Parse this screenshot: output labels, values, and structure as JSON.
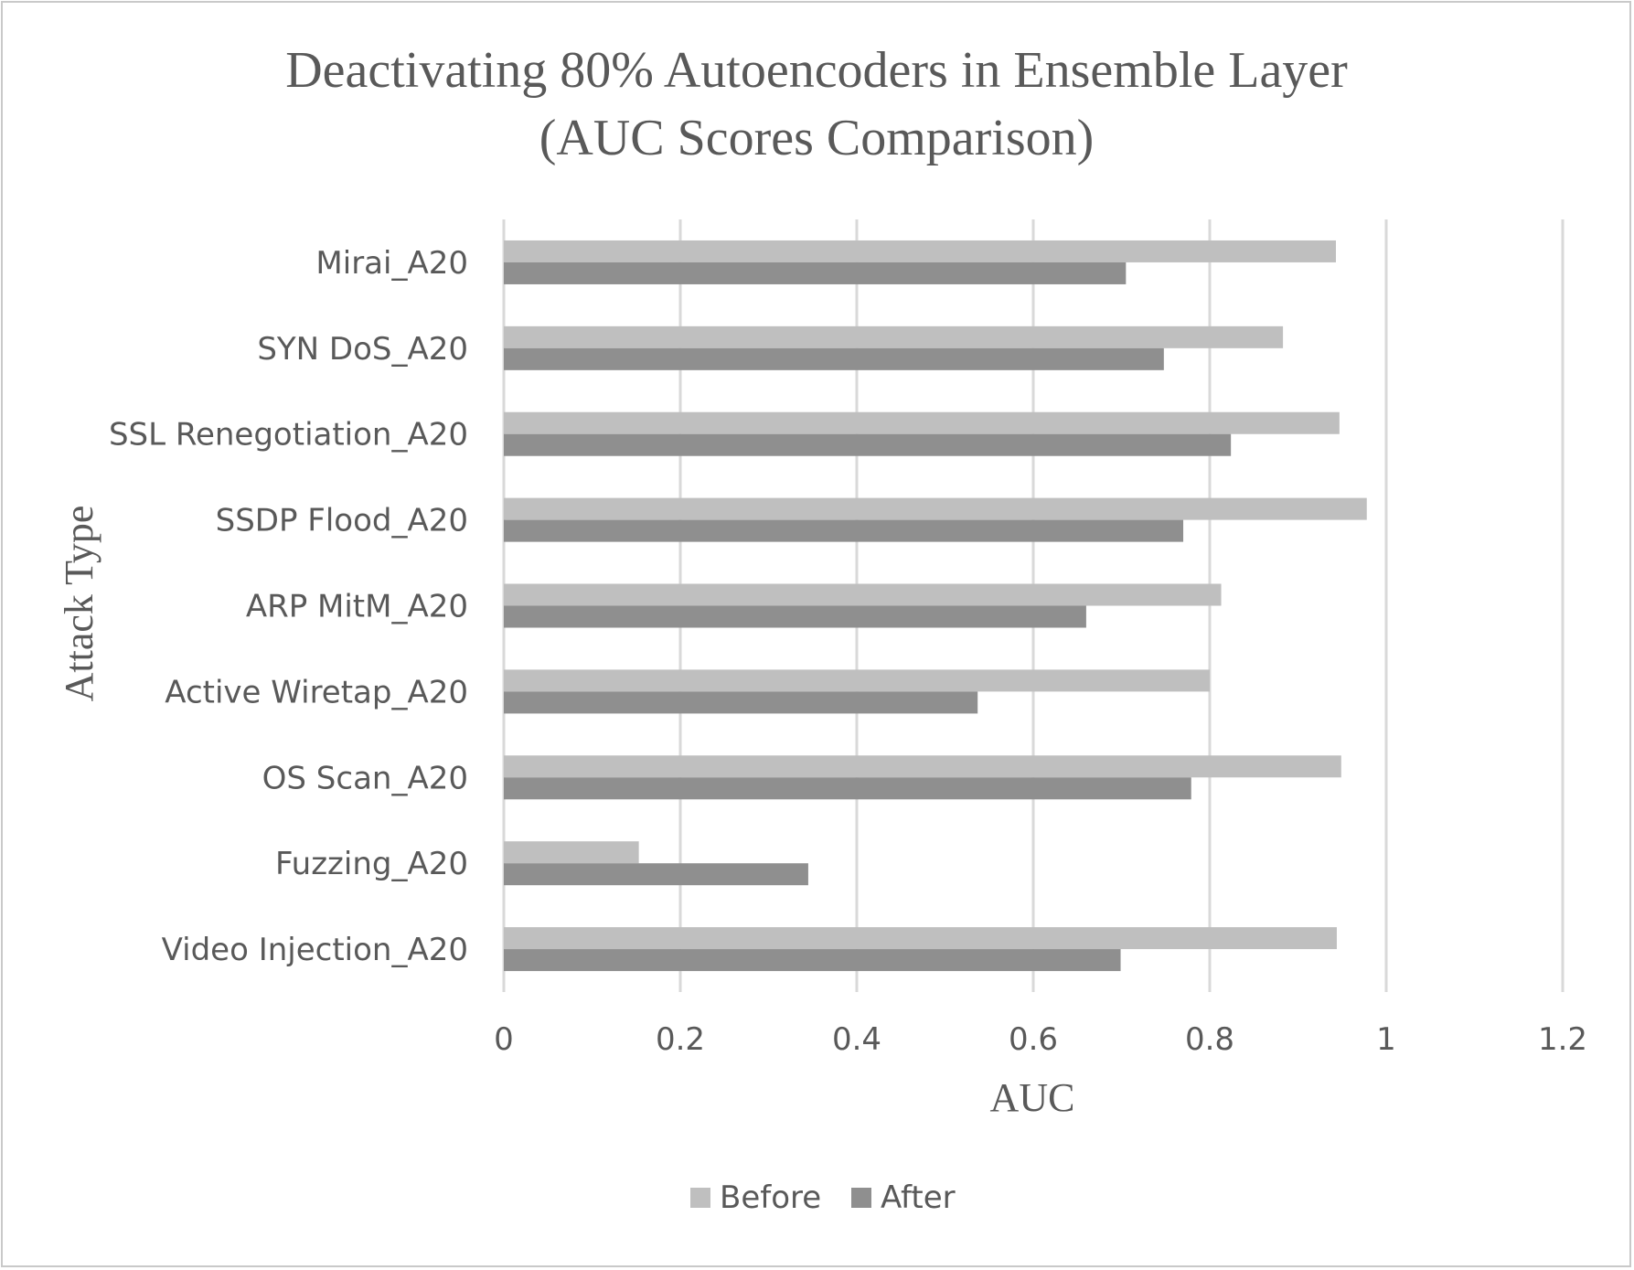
{
  "chart_data": {
    "type": "bar",
    "orientation": "horizontal",
    "title": "Deactivating 80% Autoencoders in Ensemble Layer (AUC Scores Comparison)",
    "title_lines": [
      "Deactivating 80% Autoencoders in Ensemble Layer",
      "(AUC Scores Comparison)"
    ],
    "xlabel": "AUC",
    "ylabel": "Attack Type",
    "xlim": [
      0,
      1.2
    ],
    "xticks": [
      "0",
      "0.2",
      "0.4",
      "0.6",
      "0.8",
      "1",
      "1.2"
    ],
    "xtick_values": [
      0,
      0.2,
      0.4,
      0.6,
      0.8,
      1.0,
      1.2
    ],
    "grid": true,
    "legend_position": "bottom",
    "categories": [
      "Mirai_A20",
      "SYN DoS_A20",
      "SSL Renegotiation_A20",
      "SSDP Flood_A20",
      "ARP MitM_A20",
      "Active Wiretap_A20",
      "OS Scan_A20",
      "Fuzzing_A20",
      "Video Injection_A20"
    ],
    "series": [
      {
        "name": "Before",
        "color": "#bfbfbf",
        "values": [
          0.943,
          0.883,
          0.947,
          0.978,
          0.813,
          0.8,
          0.949,
          0.153,
          0.944
        ]
      },
      {
        "name": "After",
        "color": "#8f8f8f",
        "values": [
          0.705,
          0.748,
          0.824,
          0.77,
          0.66,
          0.537,
          0.779,
          0.345,
          0.699
        ]
      }
    ]
  },
  "colors": {
    "gridline": "#d9d9d9",
    "text": "#595959",
    "border": "#c9c9c9"
  }
}
